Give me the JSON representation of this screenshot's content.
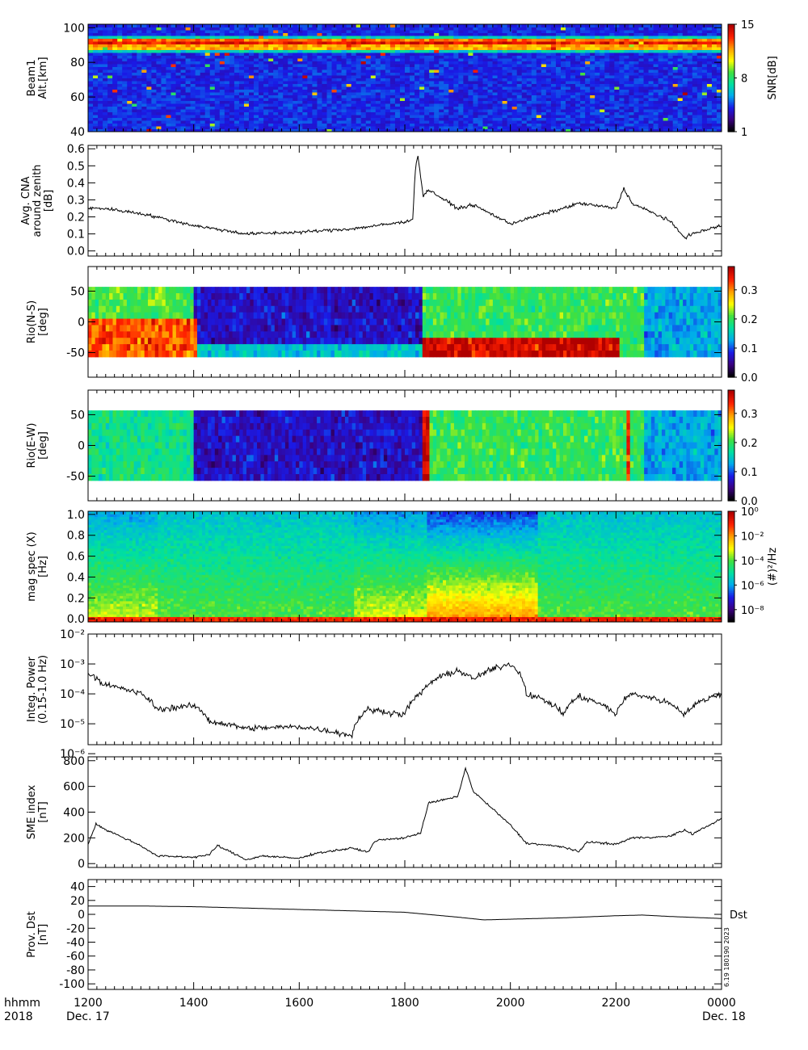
{
  "chart_data": [
    {
      "type": "heatmap",
      "ylabel": "Beam1\nAlt.[km]",
      "yticks": [
        "40",
        "60",
        "80",
        "100"
      ],
      "ylim": [
        40,
        102
      ],
      "colorbar": {
        "label": "SNR[dB]",
        "ticks": [
          "1",
          "8",
          "15"
        ],
        "range": [
          1,
          15
        ]
      },
      "bands": [
        {
          "alt": 92,
          "x_from": 1200,
          "x_to": 2400,
          "snr": 15
        },
        {
          "alt": 89,
          "x_from": 1200,
          "x_to": 2400,
          "snr": 13
        }
      ]
    },
    {
      "type": "line",
      "ylabel": "Avg. CNA\naround zenith\n[dB]",
      "yticks": [
        "0.0",
        "0.1",
        "0.2",
        "0.3",
        "0.4",
        "0.5",
        "0.6"
      ],
      "ylim": [
        -0.03,
        0.62
      ],
      "x": [
        1200,
        1230,
        1300,
        1400,
        1500,
        1600,
        1700,
        1800,
        1815,
        1820,
        1825,
        1835,
        1845,
        1900,
        1930,
        2000,
        2100,
        2130,
        2200,
        2215,
        2230,
        2300,
        2330,
        2345,
        2400
      ],
      "values": [
        0.25,
        0.25,
        0.22,
        0.15,
        0.1,
        0.11,
        0.13,
        0.17,
        0.19,
        0.48,
        0.56,
        0.32,
        0.36,
        0.25,
        0.27,
        0.16,
        0.25,
        0.28,
        0.25,
        0.37,
        0.28,
        0.18,
        0.08,
        0.1,
        0.15
      ]
    },
    {
      "type": "heatmap",
      "ylabel": "Rio(N-S)\n[deg]",
      "yticks": [
        "-50",
        "0",
        "50"
      ],
      "ylim": [
        -90,
        90
      ],
      "colorbar": {
        "ticks": [
          "0.0",
          "0.1",
          "0.2",
          "0.3"
        ],
        "range": [
          0,
          0.38
        ]
      },
      "features": [
        {
          "x_from": 1200,
          "x_to": 1400,
          "deg_from": -55,
          "deg_to": 0,
          "value": 0.33
        },
        {
          "x_from": 1830,
          "x_to": 2200,
          "deg_from": -55,
          "deg_to": -25,
          "value": 0.38
        }
      ]
    },
    {
      "type": "heatmap",
      "ylabel": "Rio(E-W)\n[deg]",
      "yticks": [
        "-50",
        "0",
        "50"
      ],
      "ylim": [
        -90,
        90
      ],
      "colorbar": {
        "ticks": [
          "0.0",
          "0.1",
          "0.2",
          "0.3"
        ],
        "range": [
          0,
          0.38
        ]
      },
      "features": [
        {
          "x_from": 1830,
          "x_to": 1845,
          "deg_from": -55,
          "deg_to": 55,
          "value": 0.38
        },
        {
          "x_from": 2215,
          "x_to": 2225,
          "deg_from": -55,
          "deg_to": 55,
          "value": 0.35
        }
      ]
    },
    {
      "type": "heatmap",
      "ylabel": "mag spec (X)\n[Hz]",
      "yticks": [
        "0.0",
        "0.2",
        "0.4",
        "0.6",
        "0.8",
        "1.0"
      ],
      "ylim": [
        -0.03,
        1.03
      ],
      "colorbar": {
        "label": "(#)²/Hz",
        "ticks": [
          "10⁰",
          "10⁻²",
          "10⁻⁴",
          "10⁻⁶",
          "10⁻⁸"
        ],
        "range_log10": [
          -9,
          0
        ]
      }
    },
    {
      "type": "line",
      "log_y": true,
      "ylabel": "Integ. Power\n(0.15-1.0 Hz)",
      "yticks": [
        "10⁻⁶",
        "10⁻⁵",
        "10⁻⁴",
        "10⁻³",
        "10⁻²"
      ],
      "ylim": [
        2e-06,
        0.01
      ],
      "x": [
        1200,
        1230,
        1300,
        1330,
        1400,
        1430,
        1500,
        1600,
        1700,
        1730,
        1800,
        1830,
        1900,
        1930,
        2000,
        2030,
        2100,
        2130,
        2200,
        2230,
        2300,
        2330,
        2400
      ],
      "values": [
        0.0005,
        0.0002,
        0.0001,
        3e-05,
        4e-05,
        1.2e-05,
        7e-06,
        8e-06,
        4e-06,
        3e-05,
        2e-05,
        0.0001,
        0.0006,
        0.0003,
        0.001,
        0.0001,
        2e-05,
        8e-05,
        2e-05,
        0.0001,
        5e-05,
        2e-05,
        0.0001
      ]
    },
    {
      "type": "line",
      "ylabel": "SME index\n[nT]",
      "yticks": [
        "0",
        "200",
        "400",
        "600",
        "800"
      ],
      "ylim": [
        -30,
        830
      ],
      "x": [
        1200,
        1215,
        1230,
        1300,
        1330,
        1400,
        1430,
        1445,
        1500,
        1530,
        1600,
        1630,
        1700,
        1730,
        1745,
        1800,
        1830,
        1845,
        1900,
        1915,
        1930,
        2000,
        2030,
        2100,
        2130,
        2145,
        2200,
        2230,
        2300,
        2330,
        2345,
        2400
      ],
      "values": [
        150,
        310,
        270,
        140,
        60,
        50,
        70,
        140,
        30,
        60,
        40,
        80,
        120,
        90,
        180,
        200,
        240,
        470,
        520,
        740,
        560,
        300,
        160,
        130,
        90,
        170,
        150,
        200,
        210,
        260,
        230,
        350
      ]
    },
    {
      "type": "line",
      "ylabel": "Prov. Dst\n[nT]",
      "yticks": [
        "-100",
        "-80",
        "-60",
        "-40",
        "-20",
        "0",
        "20",
        "40"
      ],
      "ylim": [
        -108,
        50
      ],
      "x": [
        1200,
        1300,
        1400,
        1500,
        1600,
        1700,
        1800,
        1900,
        1950,
        2000,
        2100,
        2200,
        2250,
        2300,
        2400
      ],
      "values": [
        12,
        12,
        11,
        9,
        7,
        5,
        3,
        -4,
        -8,
        -7,
        -5,
        -2,
        -1,
        -3,
        -6
      ],
      "series_label": "Dst",
      "side_text": "6.19 180190 2023"
    }
  ],
  "x_axis": {
    "range": [
      1200,
      2400
    ],
    "ticks": [
      "1200",
      "1400",
      "1600",
      "1800",
      "2000",
      "2200",
      "0000"
    ],
    "dates": {
      "start": "Dec. 17",
      "end": "Dec. 18"
    },
    "hhmm_label": "hhmm",
    "year_label": "2018"
  },
  "colors": {
    "trace": "#000000",
    "colormap": [
      "#000000",
      "#3b0080",
      "#1a1ae6",
      "#00aaee",
      "#00e0a0",
      "#40e040",
      "#ffff00",
      "#ffa000",
      "#ff2000",
      "#b00000"
    ]
  }
}
